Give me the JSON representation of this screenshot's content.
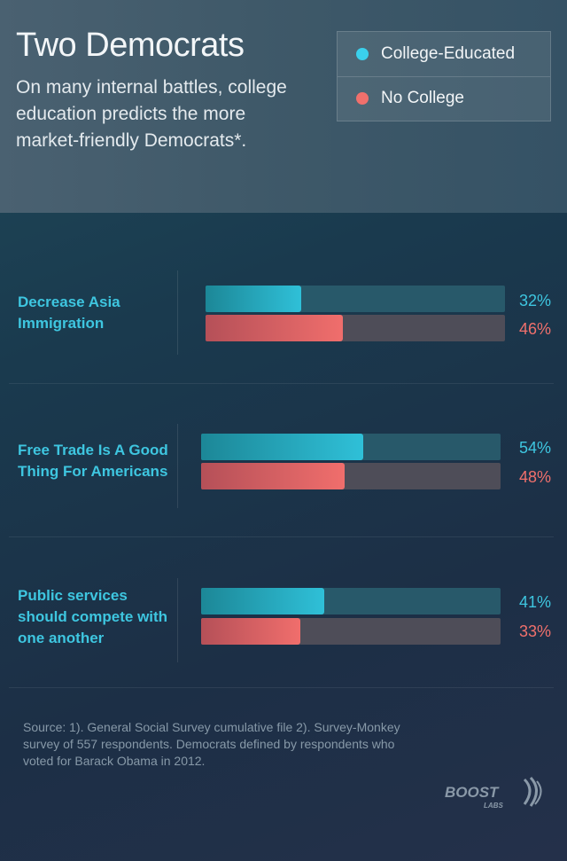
{
  "header": {
    "title": "Two Democrats",
    "subtitle": "On many internal battles, college education predicts the more market-friendly Democrats*."
  },
  "legend": {
    "items": [
      {
        "label": "College-Educated",
        "color": "#3ad0ec"
      },
      {
        "label": "No College",
        "color": "#f0706c"
      }
    ]
  },
  "chart_data": {
    "type": "bar",
    "orientation": "horizontal",
    "unit": "%",
    "xlim": [
      0,
      100
    ],
    "categories": [
      "Decrease Asia Immigration",
      "Free Trade Is A Good Thing For Americans",
      "Public services should compete with one another"
    ],
    "series": [
      {
        "name": "College-Educated",
        "values": [
          32,
          54,
          41
        ],
        "color": "#2fc0d8"
      },
      {
        "name": "No College",
        "values": [
          46,
          48,
          33
        ],
        "color": "#f06e6c"
      }
    ],
    "value_labels": {
      "College-Educated": [
        "32%",
        "54%",
        "41%"
      ],
      "No College": [
        "46%",
        "48%",
        "33%"
      ]
    }
  },
  "footer": {
    "source": "Source: 1). General Social Survey cumulative file 2). Survey-Monkey survey of 557 respondents. Democrats defined by respondents who voted for Barack Obama in 2012.",
    "logo_text": "BOOST",
    "logo_subtext": "LABS"
  }
}
